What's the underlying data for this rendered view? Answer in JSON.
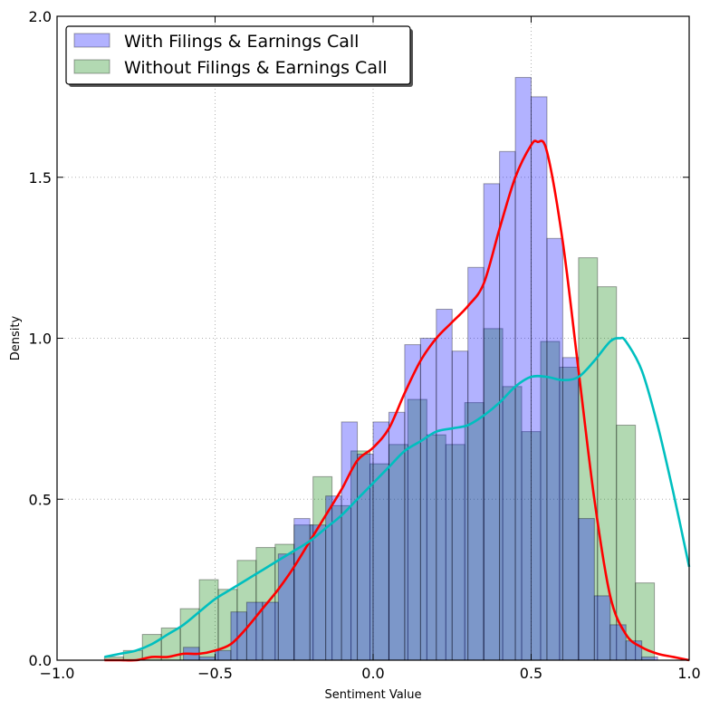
{
  "chart_data": {
    "type": "bar",
    "title": "",
    "xlabel": "Sentiment Value",
    "ylabel": "Density",
    "xlim": [
      -1.0,
      1.0
    ],
    "ylim": [
      0.0,
      2.0
    ],
    "xticks": [
      "−1.0",
      "−0.5",
      "0.0",
      "0.5",
      "1.0"
    ],
    "yticks": [
      "0.0",
      "0.5",
      "1.0",
      "1.5",
      "2.0"
    ],
    "grid": true,
    "legend_position": "top-left",
    "histograms": [
      {
        "name": "With Filings & Earnings Call",
        "color": "#0000ff",
        "alpha": 0.3,
        "bin_start": -0.85,
        "bin_width": 0.05,
        "values": [
          0,
          0,
          0,
          0,
          0,
          0.04,
          0.01,
          0.03,
          0.15,
          0.18,
          0.18,
          0.33,
          0.44,
          0.42,
          0.51,
          0.74,
          0.64,
          0.74,
          0.77,
          0.98,
          1.0,
          1.09,
          0.96,
          1.22,
          1.48,
          1.58,
          1.81,
          1.75,
          1.31,
          0.94,
          0.44,
          0.2,
          0.11,
          0.06,
          0.01
        ]
      },
      {
        "name": "Without Filings & Earnings Call",
        "color": "#008000",
        "alpha": 0.3,
        "bin_start": -0.85,
        "bin_width": 0.06,
        "values": [
          0.01,
          0.03,
          0.08,
          0.1,
          0.16,
          0.25,
          0.22,
          0.31,
          0.35,
          0.36,
          0.42,
          0.57,
          0.48,
          0.65,
          0.61,
          0.67,
          0.81,
          0.7,
          0.67,
          0.8,
          1.03,
          0.85,
          0.71,
          0.99,
          0.91,
          1.25,
          1.16,
          0.73,
          0.24
        ]
      }
    ],
    "kde_lines": [
      {
        "color": "#ff0000",
        "x": [
          -0.85,
          -0.8,
          -0.75,
          -0.7,
          -0.65,
          -0.6,
          -0.55,
          -0.5,
          -0.45,
          -0.4,
          -0.35,
          -0.3,
          -0.25,
          -0.2,
          -0.15,
          -0.1,
          -0.05,
          0.0,
          0.05,
          0.1,
          0.15,
          0.2,
          0.25,
          0.3,
          0.35,
          0.4,
          0.45,
          0.5,
          0.52,
          0.55,
          0.6,
          0.65,
          0.7,
          0.75,
          0.8,
          0.85,
          0.9,
          0.95,
          1.0
        ],
        "y": [
          0.0,
          0.0,
          0.0,
          0.01,
          0.01,
          0.02,
          0.02,
          0.03,
          0.05,
          0.1,
          0.16,
          0.22,
          0.29,
          0.37,
          0.45,
          0.53,
          0.62,
          0.66,
          0.72,
          0.83,
          0.93,
          1.0,
          1.05,
          1.1,
          1.17,
          1.34,
          1.5,
          1.6,
          1.61,
          1.58,
          1.3,
          0.9,
          0.5,
          0.2,
          0.08,
          0.04,
          0.02,
          0.01,
          0.0
        ]
      },
      {
        "color": "#00bfbf",
        "x": [
          -0.85,
          -0.8,
          -0.75,
          -0.7,
          -0.65,
          -0.6,
          -0.55,
          -0.5,
          -0.45,
          -0.4,
          -0.35,
          -0.3,
          -0.25,
          -0.2,
          -0.15,
          -0.1,
          -0.05,
          0.0,
          0.05,
          0.1,
          0.15,
          0.2,
          0.25,
          0.3,
          0.35,
          0.4,
          0.45,
          0.5,
          0.55,
          0.6,
          0.65,
          0.7,
          0.75,
          0.78,
          0.8,
          0.85,
          0.9,
          0.95,
          1.0
        ],
        "y": [
          0.01,
          0.02,
          0.03,
          0.05,
          0.08,
          0.11,
          0.15,
          0.19,
          0.22,
          0.25,
          0.28,
          0.31,
          0.34,
          0.37,
          0.41,
          0.45,
          0.5,
          0.55,
          0.6,
          0.65,
          0.68,
          0.71,
          0.72,
          0.73,
          0.76,
          0.8,
          0.85,
          0.88,
          0.88,
          0.87,
          0.88,
          0.93,
          0.99,
          1.0,
          0.99,
          0.9,
          0.73,
          0.52,
          0.29
        ]
      }
    ]
  }
}
